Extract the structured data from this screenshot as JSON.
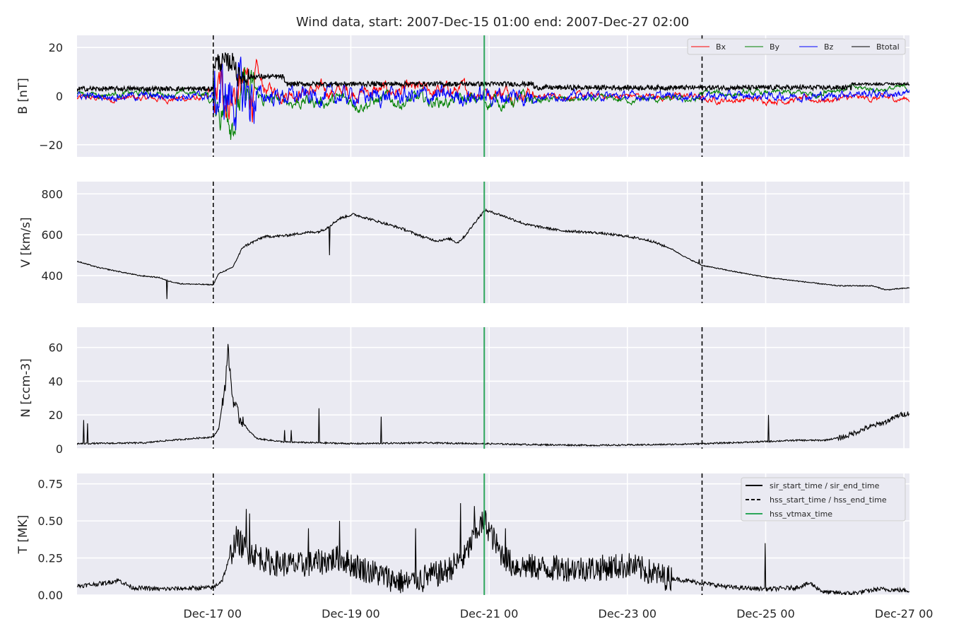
{
  "title": "Wind data, start: 2007-Dec-15 01:00  end: 2007-Dec-27 02:00",
  "chart_data": {
    "type": "line",
    "x_range_days": [
      0,
      12.04
    ],
    "x_ticks": [
      {
        "day": 1.96,
        "label": "Dec-17 00"
      },
      {
        "day": 3.96,
        "label": "Dec-19 00"
      },
      {
        "day": 5.96,
        "label": "Dec-21 00"
      },
      {
        "day": 7.96,
        "label": "Dec-23 00"
      },
      {
        "day": 9.96,
        "label": "Dec-25 00"
      },
      {
        "day": 11.96,
        "label": "Dec-27 00"
      }
    ],
    "markers": {
      "hss_start_day": 1.97,
      "hss_end_day": 9.04,
      "hss_vtmax_day": 5.89
    },
    "panels": [
      {
        "id": "B",
        "ylabel": "B [nT]",
        "ylim": [
          -25,
          25
        ],
        "yticks": [
          {
            "v": 20,
            "label": "20"
          },
          {
            "v": 0,
            "label": "0"
          },
          {
            "v": -20,
            "label": "−20"
          }
        ],
        "legend": true,
        "series": [
          {
            "name": "Bx",
            "color": "#ff0000",
            "kind": "Bx"
          },
          {
            "name": "By",
            "color": "#008000",
            "kind": "By"
          },
          {
            "name": "Bz",
            "color": "#0000ff",
            "kind": "Bz"
          },
          {
            "name": "Btotal",
            "color": "#000000",
            "kind": "Bt"
          }
        ]
      },
      {
        "id": "V",
        "ylabel": "V [km/s]",
        "ylim": [
          265,
          860
        ],
        "yticks": [
          {
            "v": 800,
            "label": "800"
          },
          {
            "v": 600,
            "label": "600"
          },
          {
            "v": 400,
            "label": "400"
          }
        ],
        "legend": false,
        "series": [
          {
            "name": "",
            "color": "#000000",
            "kind": "V",
            "anchors": [
              [
                0,
                470
              ],
              [
                0.3,
                440
              ],
              [
                0.6,
                420
              ],
              [
                0.9,
                400
              ],
              [
                1.2,
                390
              ],
              [
                1.3,
                375
              ],
              [
                1.5,
                360
              ],
              [
                1.97,
                355
              ],
              [
                2.05,
                410
              ],
              [
                2.25,
                440
              ],
              [
                2.4,
                540
              ],
              [
                2.7,
                590
              ],
              [
                3.0,
                595
              ],
              [
                3.3,
                610
              ],
              [
                3.5,
                615
              ],
              [
                3.6,
                630
              ],
              [
                3.8,
                680
              ],
              [
                4.0,
                700
              ],
              [
                4.3,
                670
              ],
              [
                4.7,
                630
              ],
              [
                5.0,
                590
              ],
              [
                5.2,
                570
              ],
              [
                5.4,
                580
              ],
              [
                5.5,
                560
              ],
              [
                5.6,
                590
              ],
              [
                5.8,
                680
              ],
              [
                5.9,
                720
              ],
              [
                6.1,
                700
              ],
              [
                6.5,
                650
              ],
              [
                7.0,
                620
              ],
              [
                7.5,
                610
              ],
              [
                8.0,
                590
              ],
              [
                8.3,
                570
              ],
              [
                8.6,
                530
              ],
              [
                8.8,
                490
              ],
              [
                9.04,
                450
              ],
              [
                9.5,
                420
              ],
              [
                10.0,
                390
              ],
              [
                10.5,
                370
              ],
              [
                11.0,
                350
              ],
              [
                11.5,
                350
              ],
              [
                11.7,
                330
              ],
              [
                12.04,
                340
              ]
            ]
          }
        ]
      },
      {
        "id": "N",
        "ylabel": "N [ccm-3]",
        "ylim": [
          0,
          72
        ],
        "yticks": [
          {
            "v": 60,
            "label": "60"
          },
          {
            "v": 40,
            "label": "40"
          },
          {
            "v": 20,
            "label": "20"
          },
          {
            "v": 0,
            "label": "0"
          }
        ],
        "legend": false,
        "series": [
          {
            "name": "",
            "color": "#000000",
            "kind": "N",
            "anchors": [
              [
                0,
                3
              ],
              [
                1.0,
                3.5
              ],
              [
                1.2,
                4.5
              ],
              [
                1.97,
                7
              ],
              [
                2.05,
                12
              ],
              [
                2.15,
                40
              ],
              [
                2.18,
                60
              ],
              [
                2.25,
                30
              ],
              [
                2.35,
                18
              ],
              [
                2.5,
                10
              ],
              [
                2.6,
                6
              ],
              [
                3.0,
                4
              ],
              [
                4.0,
                3
              ],
              [
                5.0,
                3.5
              ],
              [
                5.9,
                3
              ],
              [
                6.5,
                2.5
              ],
              [
                7.5,
                2
              ],
              [
                8.5,
                2.5
              ],
              [
                9.04,
                3
              ],
              [
                9.8,
                4
              ],
              [
                10.4,
                5
              ],
              [
                10.8,
                5
              ],
              [
                11.1,
                7
              ],
              [
                11.4,
                12
              ],
              [
                11.7,
                16
              ],
              [
                11.9,
                20
              ],
              [
                12.04,
                21
              ]
            ]
          }
        ]
      },
      {
        "id": "T",
        "ylabel": "T [MK]",
        "ylim": [
          0,
          0.82
        ],
        "yticks": [
          {
            "v": 0.75,
            "label": "0.75"
          },
          {
            "v": 0.5,
            "label": "0.50"
          },
          {
            "v": 0.25,
            "label": "0.25"
          },
          {
            "v": 0.0,
            "label": "0.00"
          }
        ],
        "legend": true,
        "series": [
          {
            "name": "",
            "color": "#000000",
            "kind": "T",
            "anchors": [
              [
                0,
                0.06
              ],
              [
                0.4,
                0.08
              ],
              [
                0.6,
                0.1
              ],
              [
                0.8,
                0.05
              ],
              [
                1.2,
                0.04
              ],
              [
                1.97,
                0.05
              ],
              [
                2.1,
                0.1
              ],
              [
                2.3,
                0.38
              ],
              [
                2.45,
                0.3
              ],
              [
                2.8,
                0.22
              ],
              [
                3.2,
                0.2
              ],
              [
                3.5,
                0.22
              ],
              [
                3.8,
                0.25
              ],
              [
                4.0,
                0.2
              ],
              [
                4.3,
                0.15
              ],
              [
                4.6,
                0.1
              ],
              [
                4.8,
                0.08
              ],
              [
                5.0,
                0.12
              ],
              [
                5.3,
                0.15
              ],
              [
                5.6,
                0.25
              ],
              [
                5.8,
                0.45
              ],
              [
                5.9,
                0.5
              ],
              [
                6.1,
                0.3
              ],
              [
                6.3,
                0.2
              ],
              [
                6.8,
                0.18
              ],
              [
                7.5,
                0.18
              ],
              [
                8.0,
                0.2
              ],
              [
                8.5,
                0.12
              ],
              [
                9.04,
                0.08
              ],
              [
                9.5,
                0.05
              ],
              [
                10.0,
                0.04
              ],
              [
                10.4,
                0.05
              ],
              [
                10.6,
                0.08
              ],
              [
                10.8,
                0.02
              ],
              [
                11.2,
                0.01
              ],
              [
                11.6,
                0.04
              ],
              [
                12.04,
                0.03
              ]
            ]
          }
        ]
      }
    ],
    "legend_B": [
      "Bx",
      "By",
      "Bz",
      "Btotal"
    ],
    "legend_T": [
      {
        "label": "sir_start_time / sir_end_time",
        "style": "solid",
        "color": "#000000"
      },
      {
        "label": "hss_start_time / hss_end_time",
        "style": "dashed",
        "color": "#000000"
      },
      {
        "label": "hss_vtmax_time",
        "style": "solid",
        "color": "#2ca65a"
      }
    ],
    "grid": true,
    "background": "#eaeaf2",
    "grid_color": "#ffffff"
  }
}
